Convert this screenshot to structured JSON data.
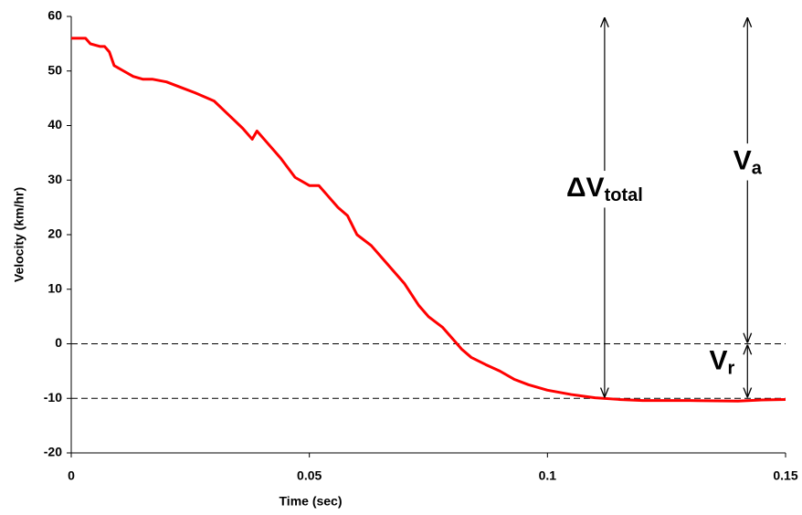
{
  "chart_data": {
    "type": "line",
    "x_label": "Time (sec)",
    "y_label": "Velocity (km/hr)",
    "xlim": [
      0,
      0.15
    ],
    "xticks": [
      0,
      0.05,
      0.1,
      0.15
    ],
    "ylim": [
      -20,
      60
    ],
    "yticks": [
      -20,
      -10,
      0,
      10,
      20,
      30,
      40,
      50,
      60
    ],
    "reference_lines": [
      0,
      -10
    ],
    "series": [
      {
        "color": "#ff0000",
        "x": [
          0,
          0.003,
          0.004,
          0.006,
          0.007,
          0.008,
          0.009,
          0.011,
          0.013,
          0.015,
          0.017,
          0.02,
          0.023,
          0.026,
          0.03,
          0.033,
          0.036,
          0.038,
          0.039,
          0.041,
          0.044,
          0.047,
          0.05,
          0.052,
          0.054,
          0.056,
          0.058,
          0.06,
          0.063,
          0.066,
          0.07,
          0.073,
          0.075,
          0.078,
          0.08,
          0.082,
          0.084,
          0.087,
          0.09,
          0.093,
          0.096,
          0.1,
          0.105,
          0.11,
          0.115,
          0.12,
          0.13,
          0.14,
          0.145,
          0.15
        ],
        "values": [
          56,
          56,
          55,
          54.5,
          54.5,
          53.5,
          51,
          50,
          49,
          48.5,
          48.5,
          48,
          47,
          46,
          44.5,
          42,
          39.5,
          37.5,
          39,
          37,
          34,
          30.5,
          29,
          29,
          27,
          25,
          23.5,
          20,
          18,
          15,
          11,
          7,
          5,
          3,
          1,
          -1,
          -2.5,
          -3.8,
          -5,
          -6.5,
          -7.5,
          -8.5,
          -9.3,
          -9.9,
          -10.2,
          -10.4,
          -10.4,
          -10.5,
          -10.3,
          -10.2
        ]
      }
    ],
    "annotations": [
      {
        "text": "ΔV",
        "sub": "total",
        "x": 0.112,
        "from": 60,
        "to": -10
      },
      {
        "text": "V",
        "sub": "a",
        "x": 0.142,
        "from": 60,
        "to": 0
      },
      {
        "text": "V",
        "sub": "r",
        "x": 0.142,
        "from": 0,
        "to": -10
      }
    ]
  }
}
